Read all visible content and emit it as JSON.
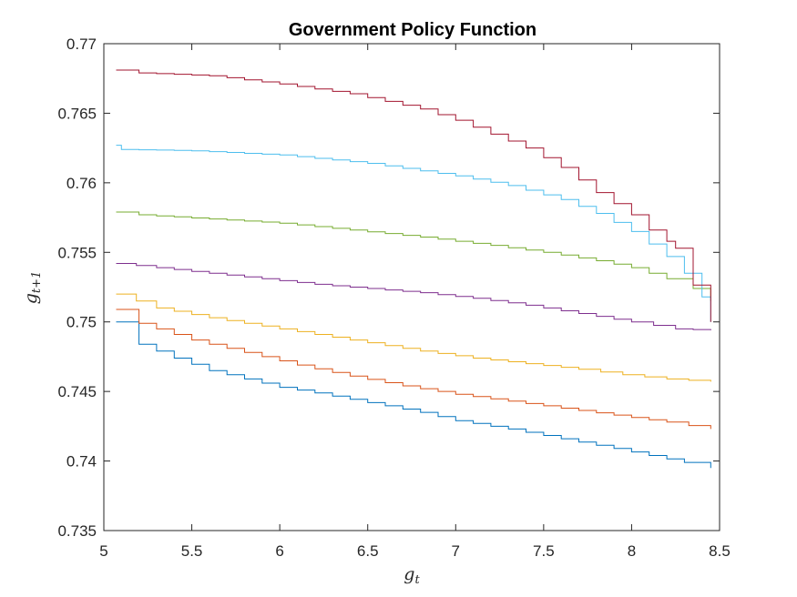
{
  "chart_data": {
    "type": "line",
    "title": "Government Policy Function",
    "xlabel": "g",
    "xlabel_sub": "t",
    "ylabel": "g",
    "ylabel_sub": "t+1",
    "xlim": [
      5,
      8.5
    ],
    "ylim": [
      0.735,
      0.77
    ],
    "xticks": [
      "5",
      "5.5",
      "6",
      "6.5",
      "7",
      "7.5",
      "8",
      "8.5"
    ],
    "yticks": [
      "0.735",
      "0.74",
      "0.745",
      "0.75",
      "0.755",
      "0.76",
      "0.765",
      "0.77"
    ],
    "grid": false,
    "legend": false,
    "series": [
      {
        "color": "#0072BD",
        "x": [
          5.07,
          5.2,
          5.4,
          5.6,
          5.8,
          6.0,
          6.2,
          6.5,
          6.8,
          7.0,
          7.3,
          7.6,
          7.9,
          8.1,
          8.3,
          8.45
        ],
        "y": [
          0.75,
          0.7484,
          0.7474,
          0.7465,
          0.7459,
          0.7453,
          0.7449,
          0.7442,
          0.7435,
          0.7429,
          0.7423,
          0.7416,
          0.7409,
          0.7404,
          0.7399,
          0.7395
        ]
      },
      {
        "color": "#D95319",
        "x": [
          5.07,
          5.2,
          5.5,
          5.8,
          6.1,
          6.4,
          6.7,
          7.0,
          7.3,
          7.6,
          7.9,
          8.2,
          8.45
        ],
        "y": [
          0.7509,
          0.7499,
          0.7487,
          0.7478,
          0.7469,
          0.7461,
          0.7454,
          0.7448,
          0.7443,
          0.7438,
          0.7433,
          0.7428,
          0.7423
        ]
      },
      {
        "color": "#EDB120",
        "x": [
          5.07,
          5.3,
          5.6,
          5.9,
          6.2,
          6.5,
          6.8,
          7.1,
          7.4,
          7.7,
          7.95,
          8.2,
          8.45
        ],
        "y": [
          0.752,
          0.751,
          0.7503,
          0.7497,
          0.7491,
          0.7485,
          0.7479,
          0.7474,
          0.747,
          0.7466,
          0.7462,
          0.7459,
          0.7457
        ]
      },
      {
        "color": "#7E2F8E",
        "x": [
          5.07,
          5.3,
          5.6,
          5.9,
          6.2,
          6.5,
          6.8,
          7.1,
          7.4,
          7.7,
          8.0,
          8.25,
          8.45
        ],
        "y": [
          0.7542,
          0.7539,
          0.7535,
          0.7531,
          0.7527,
          0.7524,
          0.7521,
          0.7517,
          0.7512,
          0.7506,
          0.75,
          0.7495,
          0.7494
        ]
      },
      {
        "color": "#77AC30",
        "x": [
          5.07,
          5.2,
          5.6,
          6.0,
          6.4,
          6.8,
          7.2,
          7.5,
          7.8,
          8.0,
          8.2,
          8.35,
          8.45
        ],
        "y": [
          0.7579,
          0.7577,
          0.7574,
          0.7571,
          0.7566,
          0.7561,
          0.7555,
          0.755,
          0.7544,
          0.7539,
          0.7531,
          0.7524,
          0.7515
        ]
      },
      {
        "color": "#4DBEEE",
        "x": [
          5.07,
          5.1,
          5.5,
          6.0,
          6.5,
          7.0,
          7.3,
          7.6,
          7.8,
          8.0,
          8.1,
          8.2,
          8.3,
          8.4,
          8.45
        ],
        "y": [
          0.7627,
          0.7624,
          0.7623,
          0.762,
          0.7614,
          0.7605,
          0.7598,
          0.7588,
          0.7578,
          0.7565,
          0.7556,
          0.7547,
          0.7535,
          0.7518,
          0.75
        ]
      },
      {
        "color": "#A2142F",
        "x": [
          5.07,
          5.2,
          5.6,
          6.0,
          6.4,
          6.8,
          7.0,
          7.2,
          7.4,
          7.6,
          7.8,
          8.0,
          8.1,
          8.2,
          8.25,
          8.45
        ],
        "y": [
          0.7681,
          0.7679,
          0.7677,
          0.7671,
          0.7664,
          0.7653,
          0.7645,
          0.7635,
          0.7625,
          0.7611,
          0.7593,
          0.7577,
          0.7566,
          0.7558,
          0.7553,
          0.75
        ]
      }
    ]
  }
}
